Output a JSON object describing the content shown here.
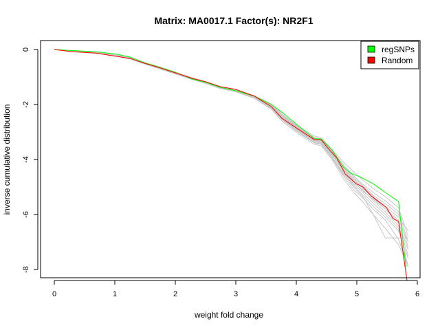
{
  "chart_data": {
    "type": "line",
    "title": "Matrix: MA0017.1 Factor(s): NR2F1",
    "xlabel": "weight fold change",
    "ylabel": "inverse cumulative distribution",
    "xlim": [
      -0.25,
      6.05
    ],
    "ylim": [
      -8.3,
      0.3
    ],
    "xticks": [
      0,
      1,
      2,
      3,
      4,
      5,
      6
    ],
    "yticks": [
      0,
      -2,
      -4,
      -6,
      -8
    ],
    "xtick_labels": [
      "0",
      "1",
      "2",
      "3",
      "4",
      "5",
      "6"
    ],
    "ytick_labels": [
      "0",
      "-2",
      "-4",
      "-6",
      "-8"
    ],
    "grid": false,
    "legend": {
      "position": "top-right",
      "entries": [
        {
          "label": "regSNPs",
          "color": "#00ff00"
        },
        {
          "label": "Random",
          "color": "#ff0000"
        }
      ]
    },
    "series": [
      {
        "name": "regSNPs",
        "color": "#00ff00",
        "x": [
          0,
          0.24,
          0.69,
          1.03,
          1.26,
          1.49,
          1.72,
          2.0,
          2.28,
          2.51,
          2.74,
          3.0,
          3.31,
          3.59,
          3.76,
          4.02,
          4.3,
          4.41,
          4.59,
          4.78,
          4.9,
          5.05,
          5.27,
          5.47,
          5.69,
          5.81
        ],
        "y": [
          0,
          -0.03,
          -0.08,
          -0.17,
          -0.28,
          -0.48,
          -0.63,
          -0.83,
          -1.08,
          -1.2,
          -1.38,
          -1.5,
          -1.7,
          -2.0,
          -2.28,
          -2.75,
          -3.25,
          -3.25,
          -3.65,
          -4.28,
          -4.5,
          -4.63,
          -4.88,
          -5.2,
          -5.53,
          -7.9
        ]
      },
      {
        "name": "Random",
        "color": "#ff0000",
        "x": [
          0,
          0.3,
          0.69,
          1.03,
          1.26,
          1.49,
          1.72,
          2.0,
          2.28,
          2.51,
          2.74,
          3.0,
          3.31,
          3.59,
          3.76,
          4.02,
          4.3,
          4.41,
          4.52,
          4.67,
          4.81,
          4.99,
          5.1,
          5.24,
          5.49,
          5.6,
          5.69,
          5.83
        ],
        "y": [
          0,
          -0.08,
          -0.13,
          -0.25,
          -0.33,
          -0.5,
          -0.65,
          -0.85,
          -1.05,
          -1.18,
          -1.35,
          -1.45,
          -1.7,
          -2.08,
          -2.5,
          -2.88,
          -3.28,
          -3.28,
          -3.58,
          -3.95,
          -4.53,
          -4.88,
          -5.0,
          -5.33,
          -5.75,
          -6.15,
          -6.25,
          -8.4
        ]
      }
    ],
    "background_series_color": "#c8c8c8",
    "background_series_x": [
      0,
      0.3,
      0.69,
      1.03,
      1.26,
      1.49,
      1.72,
      2.0,
      2.28,
      2.51,
      2.74,
      3.0,
      3.31,
      3.59,
      3.76,
      4.02,
      4.3,
      4.41,
      4.59,
      4.78,
      4.95,
      5.1,
      5.27,
      5.47,
      5.69,
      5.85
    ],
    "background_series": [
      [
        0,
        -0.07,
        -0.12,
        -0.22,
        -0.32,
        -0.5,
        -0.65,
        -0.85,
        -1.05,
        -1.2,
        -1.38,
        -1.5,
        -1.72,
        -2.1,
        -2.45,
        -2.9,
        -3.3,
        -3.35,
        -3.8,
        -4.4,
        -4.85,
        -5.1,
        -5.5,
        -5.9,
        -6.4,
        -7.5
      ],
      [
        0,
        -0.06,
        -0.1,
        -0.2,
        -0.3,
        -0.47,
        -0.62,
        -0.82,
        -1.02,
        -1.17,
        -1.35,
        -1.47,
        -1.68,
        -2.0,
        -2.35,
        -2.8,
        -3.2,
        -3.25,
        -3.7,
        -4.2,
        -4.6,
        -4.9,
        -5.2,
        -5.5,
        -5.9,
        -7.0
      ],
      [
        0,
        -0.08,
        -0.13,
        -0.24,
        -0.34,
        -0.52,
        -0.68,
        -0.88,
        -1.08,
        -1.23,
        -1.41,
        -1.53,
        -1.76,
        -2.15,
        -2.55,
        -3.0,
        -3.4,
        -3.45,
        -3.95,
        -4.6,
        -5.1,
        -5.4,
        -5.8,
        -6.2,
        -6.9,
        -7.9
      ],
      [
        0,
        -0.07,
        -0.11,
        -0.21,
        -0.31,
        -0.49,
        -0.64,
        -0.84,
        -1.04,
        -1.19,
        -1.37,
        -1.49,
        -1.7,
        -2.05,
        -2.4,
        -2.85,
        -3.25,
        -3.3,
        -3.75,
        -4.3,
        -4.7,
        -5.0,
        -5.35,
        -5.7,
        -6.1,
        -6.6
      ],
      [
        0,
        -0.07,
        -0.12,
        -0.23,
        -0.33,
        -0.51,
        -0.66,
        -0.86,
        -1.06,
        -1.21,
        -1.39,
        -1.51,
        -1.74,
        -2.12,
        -2.5,
        -2.95,
        -3.35,
        -3.4,
        -3.9,
        -4.5,
        -4.95,
        -5.3,
        -5.7,
        -6.1,
        -6.6,
        -7.6
      ],
      [
        0,
        -0.06,
        -0.11,
        -0.21,
        -0.31,
        -0.49,
        -0.63,
        -0.83,
        -1.03,
        -1.18,
        -1.36,
        -1.48,
        -1.69,
        -2.02,
        -2.38,
        -2.82,
        -3.22,
        -3.28,
        -3.72,
        -4.25,
        -4.65,
        -4.95,
        -5.3,
        -5.6,
        -6.0,
        -7.2
      ],
      [
        0,
        -0.08,
        -0.13,
        -0.23,
        -0.33,
        -0.51,
        -0.67,
        -0.87,
        -1.07,
        -1.22,
        -1.4,
        -1.52,
        -1.75,
        -2.14,
        -2.52,
        -2.98,
        -3.38,
        -3.43,
        -3.92,
        -4.55,
        -5.0,
        -5.35,
        -6.0,
        -6.85,
        -6.85,
        -6.85
      ],
      [
        0,
        -0.07,
        -0.12,
        -0.22,
        -0.32,
        -0.5,
        -0.65,
        -0.85,
        -1.05,
        -1.2,
        -1.38,
        -1.5,
        -1.72,
        -2.08,
        -2.44,
        -2.9,
        -3.3,
        -3.33,
        -3.82,
        -4.45,
        -4.9,
        -5.2,
        -5.6,
        -6.0,
        -6.5,
        -7.9
      ],
      [
        0,
        -0.06,
        -0.1,
        -0.2,
        -0.3,
        -0.48,
        -0.63,
        -0.83,
        -1.03,
        -1.18,
        -1.36,
        -1.48,
        -1.7,
        -2.03,
        -2.36,
        -2.78,
        -3.15,
        -3.2,
        -3.65,
        -4.1,
        -4.45,
        -4.75,
        -5.05,
        -5.35,
        -5.75,
        -6.8
      ],
      [
        0,
        -0.08,
        -0.14,
        -0.25,
        -0.35,
        -0.53,
        -0.69,
        -0.89,
        -1.09,
        -1.24,
        -1.42,
        -1.54,
        -1.78,
        -2.18,
        -2.6,
        -3.05,
        -3.45,
        -3.5,
        -4.0,
        -4.7,
        -5.2,
        -5.55,
        -6.0,
        -6.5,
        -7.1,
        -7.9
      ],
      [
        0,
        -0.07,
        -0.12,
        -0.22,
        -0.32,
        -0.5,
        -0.65,
        -0.85,
        -1.05,
        -1.2,
        -1.38,
        -1.5,
        -1.73,
        -2.1,
        -2.47,
        -2.92,
        -3.32,
        -3.38,
        -3.85,
        -4.35,
        -4.8,
        -5.15,
        -5.45,
        -5.8,
        -6.3,
        -7.3
      ],
      [
        0,
        -0.07,
        -0.11,
        -0.21,
        -0.31,
        -0.49,
        -0.64,
        -0.84,
        -1.04,
        -1.19,
        -1.37,
        -1.49,
        -1.71,
        -2.06,
        -2.42,
        -2.87,
        -3.27,
        -3.32,
        -3.78,
        -4.35,
        -4.75,
        -5.05,
        -5.4,
        -5.8,
        -6.2,
        -7.0
      ]
    ]
  }
}
